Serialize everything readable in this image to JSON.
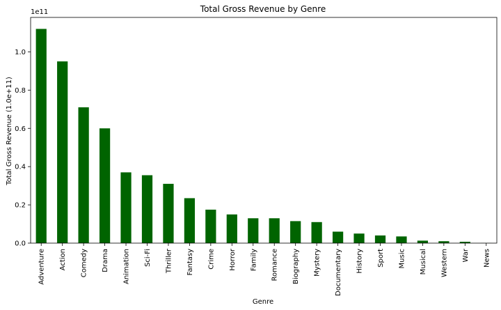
{
  "chart_data": {
    "type": "bar",
    "title": "Total Gross Revenue by Genre",
    "xlabel": "Genre",
    "ylabel": "Total Gross Revenue (1.0e+11)",
    "offset_text": "1e11",
    "ylim": [
      0,
      1.18
    ],
    "yticks": [
      "0.0",
      "0.2",
      "0.4",
      "0.6",
      "0.8",
      "1.0"
    ],
    "grid": false,
    "bar_color": "#006400",
    "categories": [
      "Adventure",
      "Action",
      "Comedy",
      "Drama",
      "Animation",
      "Sci-Fi",
      "Thriller",
      "Fantasy",
      "Crime",
      "Horror",
      "Family",
      "Romance",
      "Biography",
      "Mystery",
      "Documentary",
      "History",
      "Sport",
      "Music",
      "Musical",
      "Western",
      "War",
      "News"
    ],
    "values": [
      1.12,
      0.95,
      0.71,
      0.6,
      0.37,
      0.355,
      0.31,
      0.235,
      0.175,
      0.15,
      0.13,
      0.13,
      0.115,
      0.11,
      0.06,
      0.05,
      0.04,
      0.035,
      0.013,
      0.01,
      0.007,
      0.0005
    ]
  }
}
